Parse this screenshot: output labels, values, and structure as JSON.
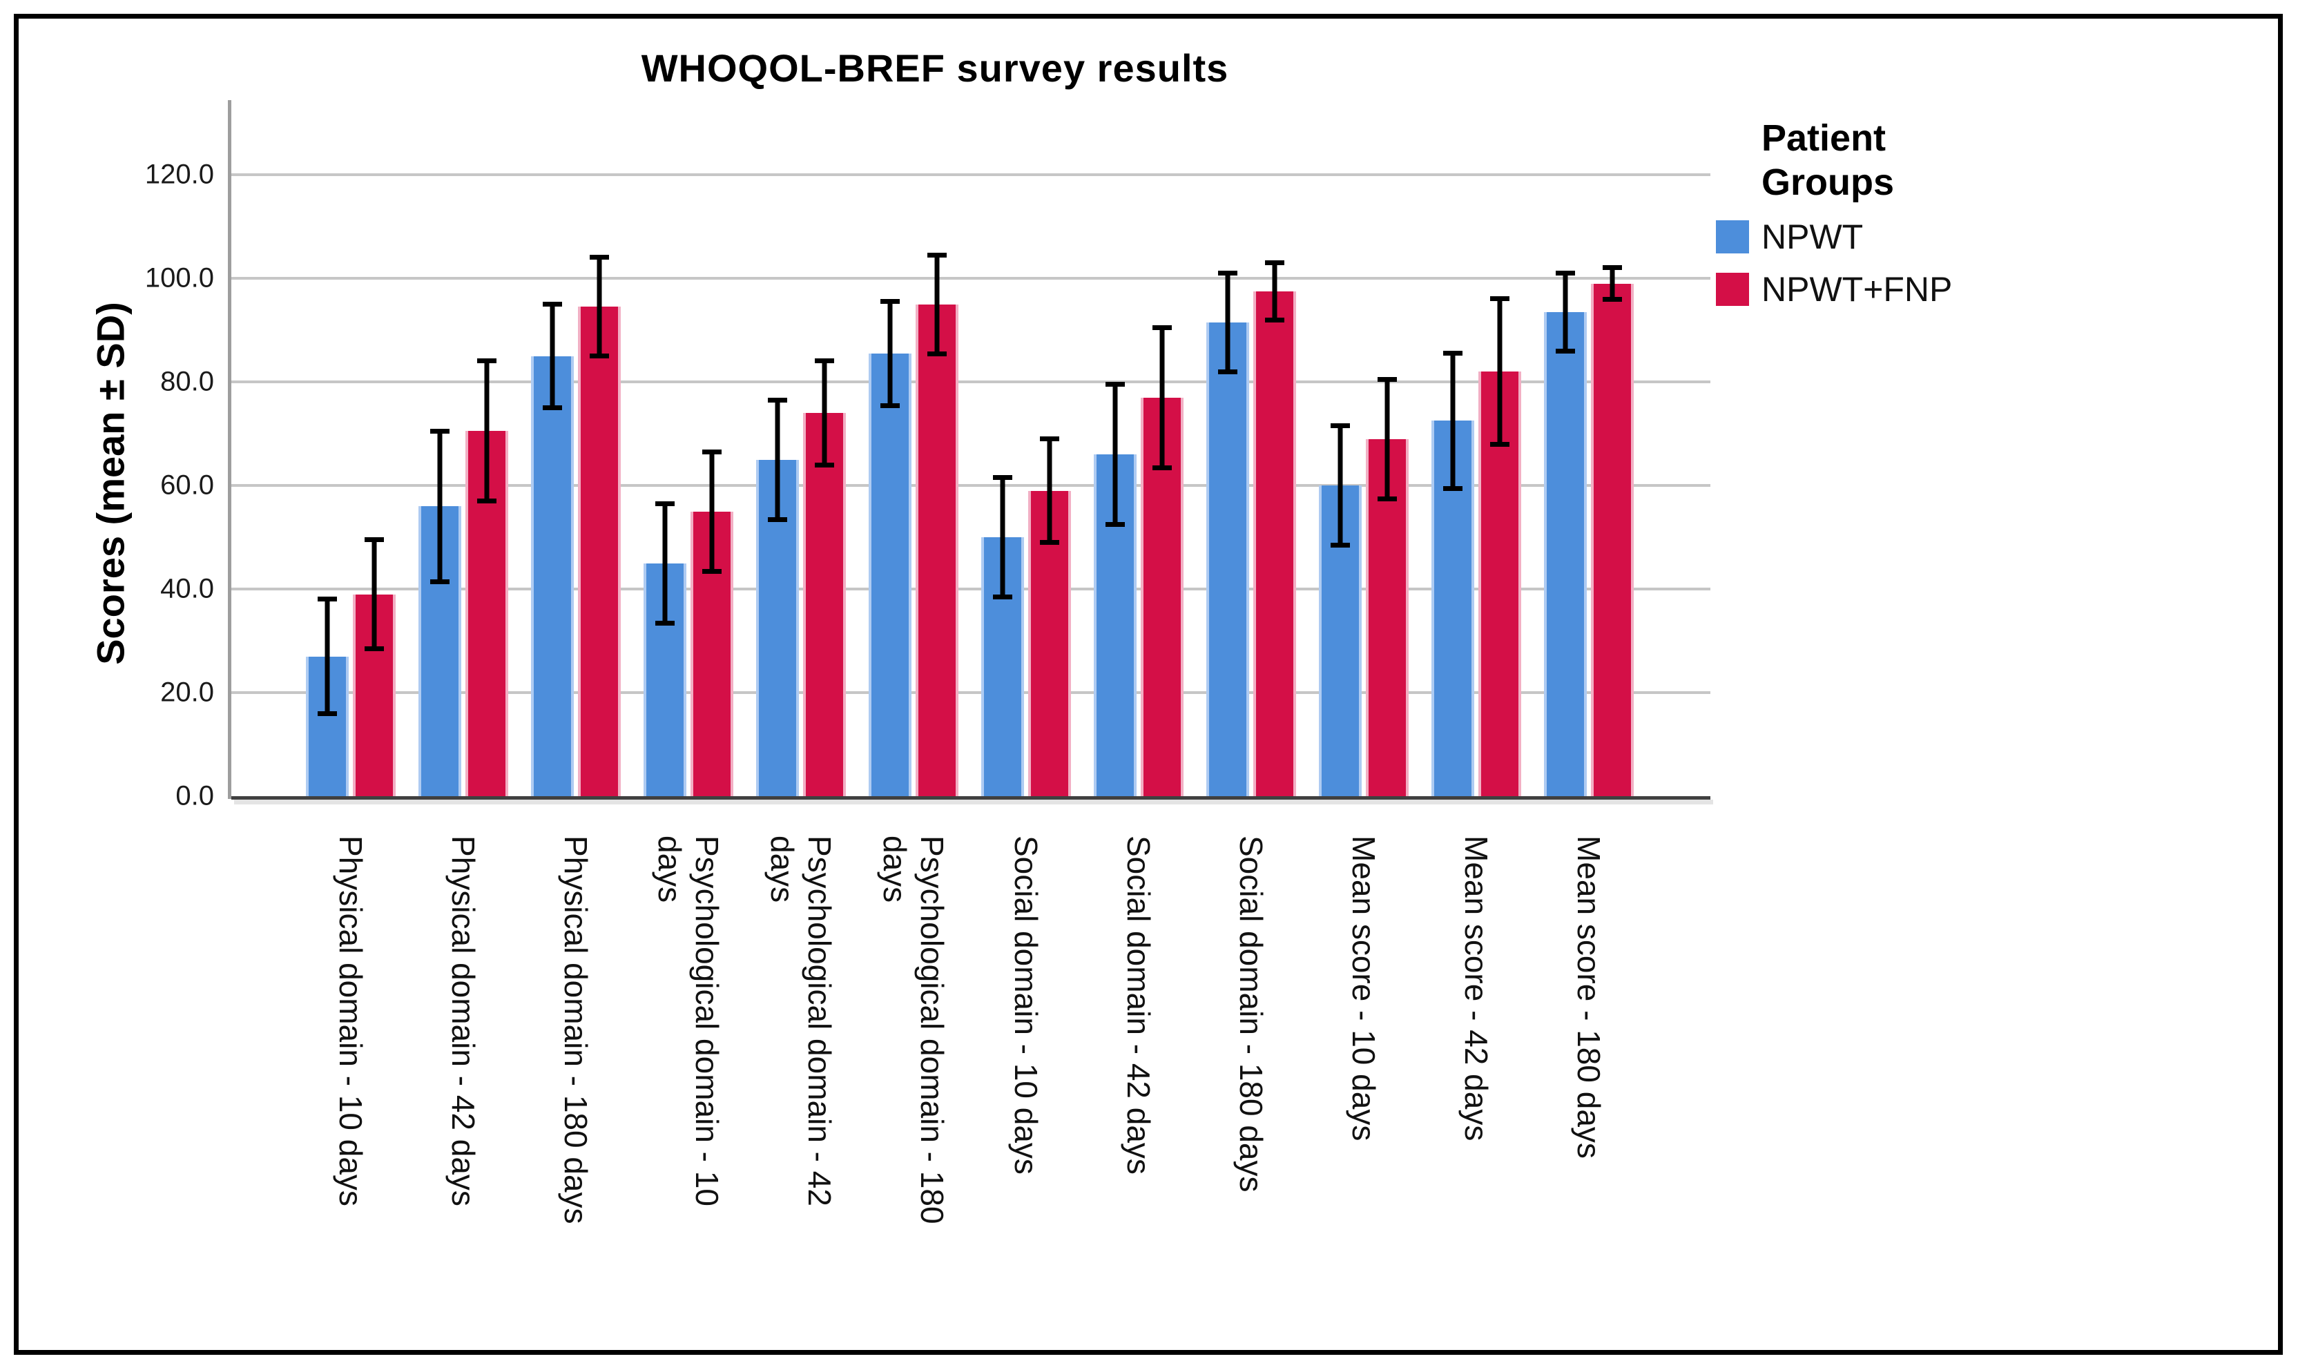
{
  "title": "WHOQOL-BREF survey results",
  "y_axis": {
    "label": "Scores (mean ± SD)",
    "tick_labels": [
      "0.0",
      "20.0",
      "40.0",
      "60.0",
      "80.0",
      "100.0",
      "120.0"
    ],
    "min": 0,
    "max": 120,
    "step": 20
  },
  "legend": {
    "title": "Patient Groups",
    "title_lines": [
      "Patient",
      "Groups"
    ],
    "items": [
      {
        "label": "NPWT",
        "color": "#4D8EDB"
      },
      {
        "label": "NPWT+FNP",
        "color": "#D40F47"
      }
    ]
  },
  "colors": {
    "npwt_bar": "#4D8EDB",
    "npwt_bar_edge": "#AECBF2",
    "fnp_bar": "#D40F47",
    "fnp_bar_edge": "#F2AFC4",
    "gridline": "#C6C6C6",
    "axis_line": "#9E9E9E",
    "baseline": "#404040",
    "error_bar": "#000000"
  },
  "chart_data": {
    "type": "bar",
    "title": "WHOQOL-BREF survey results",
    "xlabel": "",
    "ylabel": "Scores (mean ± SD)",
    "ylim": [
      0,
      120
    ],
    "grid": true,
    "legend_position": "right",
    "legend_title": "Patient Groups",
    "error_bars": "± SD",
    "categories": [
      "Physical domain - 10 days",
      "Physical domain - 42 days",
      "Physical domain - 180 days",
      "Psychological domain - 10 days",
      "Psychological domain - 42 days",
      "Psychological domain - 180 days",
      "Social domain - 10 days",
      "Social domain - 42 days",
      "Social domain - 180 days",
      "Mean score - 10 days",
      "Mean score - 42 days",
      "Mean score - 180 days"
    ],
    "category_label_lines": [
      [
        "Physical domain - 10 days"
      ],
      [
        "Physical domain - 42 days"
      ],
      [
        "Physical domain - 180 days"
      ],
      [
        "Psychological domain - 10",
        "days"
      ],
      [
        "Psychological domain - 42",
        "days"
      ],
      [
        "Psychological domain - 180",
        "days"
      ],
      [
        "Social domain - 10 days"
      ],
      [
        "Social domain - 42 days"
      ],
      [
        "Social domain - 180 days"
      ],
      [
        "Mean score - 10 days"
      ],
      [
        "Mean score - 42 days"
      ],
      [
        "Mean score - 180 days"
      ]
    ],
    "series": [
      {
        "name": "NPWT",
        "values": [
          27,
          56,
          85,
          45,
          65,
          85.5,
          50,
          66,
          91.5,
          60,
          72.5,
          93.5
        ],
        "sd": [
          11.5,
          15,
          10.5,
          12,
          12,
          10.5,
          12,
          14,
          10,
          12,
          13.5,
          8
        ]
      },
      {
        "name": "NPWT+FNP",
        "values": [
          39,
          70.5,
          94.5,
          55,
          74,
          95,
          59,
          77,
          97.5,
          69,
          82,
          99
        ],
        "sd": [
          11,
          14,
          10,
          12,
          10.5,
          10,
          10.5,
          14,
          6,
          12,
          14.5,
          3.5
        ]
      }
    ]
  }
}
